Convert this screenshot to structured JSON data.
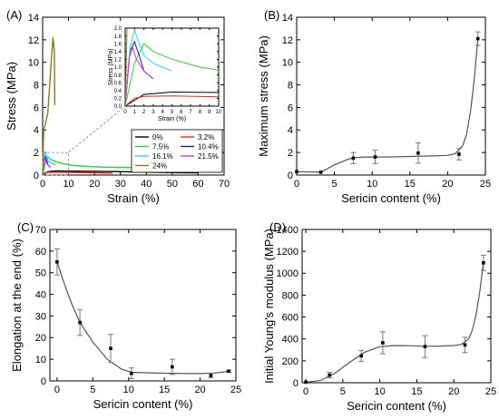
{
  "chart_data": [
    {
      "panel": "(A)",
      "type": "line",
      "xlabel": "Strain (%)",
      "ylabel": "Stress (MPa)",
      "xlim": [
        0,
        70
      ],
      "ylim": [
        0,
        14
      ],
      "xticks": [
        0,
        10,
        20,
        30,
        40,
        50,
        60,
        70
      ],
      "yticks": [
        0,
        2,
        4,
        6,
        8,
        10,
        12,
        14
      ],
      "legend_position": "bottom-right",
      "series": [
        {
          "name": "0%",
          "color": "#000000",
          "x": [
            0,
            2,
            5,
            10,
            20,
            30,
            40,
            50,
            60
          ],
          "y": [
            0,
            0.3,
            0.36,
            0.35,
            0.33,
            0.3,
            0.26,
            0.22,
            0.2
          ]
        },
        {
          "name": "3.2%",
          "color": "#e8261f",
          "x": [
            0,
            1,
            2,
            5,
            10,
            15,
            20,
            25,
            27
          ],
          "y": [
            0,
            0.2,
            0.25,
            0.26,
            0.24,
            0.22,
            0.2,
            0.18,
            0.15
          ]
        },
        {
          "name": "7.5%",
          "color": "#2fd22f",
          "x": [
            0,
            1,
            2,
            3,
            5,
            8,
            12,
            18,
            25,
            30,
            35
          ],
          "y": [
            0,
            1.1,
            1.6,
            1.4,
            1.2,
            1.0,
            0.85,
            0.75,
            0.7,
            0.68,
            0.65
          ]
        },
        {
          "name": "10.4%",
          "color": "#1b1bb0",
          "x": [
            0,
            0.5,
            1,
            1.5,
            2,
            3
          ],
          "y": [
            0,
            1.4,
            1.65,
            1.3,
            0.9,
            0.7
          ]
        },
        {
          "name": "16.1%",
          "color": "#19e0ee",
          "x": [
            0,
            0.5,
            1,
            1.5,
            2,
            3,
            4,
            5
          ],
          "y": [
            0,
            1.5,
            1.95,
            1.6,
            1.3,
            1.1,
            1.0,
            0.9
          ]
        },
        {
          "name": "21.5%",
          "color": "#e02ee0",
          "x": [
            0,
            0.4,
            0.8,
            1.2,
            2,
            3
          ],
          "y": [
            0,
            1.2,
            1.5,
            1.2,
            0.9,
            0.7
          ]
        },
        {
          "name": "24%",
          "color": "#8a7e18",
          "x": [
            0,
            0.4,
            1,
            2,
            3,
            4,
            4.5,
            4.7
          ],
          "y": [
            0,
            4.0,
            4.5,
            5.5,
            9.0,
            12.2,
            11.0,
            6.2
          ]
        }
      ],
      "inset": {
        "xlabel": "Strain (%)",
        "ylabel": "Stress (MPa)",
        "xlim": [
          0,
          10
        ],
        "ylim": [
          0,
          2.0
        ],
        "xticks": [
          0,
          1,
          2,
          3,
          4,
          5,
          6,
          7,
          8,
          9,
          10
        ],
        "yticks": [
          "0.0",
          "0.2",
          "0.4",
          "0.6",
          "0.8",
          "1.0",
          "1.2",
          "1.4",
          "1.6",
          "1.8",
          "2.0"
        ]
      }
    },
    {
      "panel": "(B)",
      "type": "scatter",
      "xlabel": "Sericin content (%)",
      "ylabel": "Maximum stress (MPa)",
      "xlim": [
        0,
        25
      ],
      "ylim": [
        0,
        14
      ],
      "xticks": [
        0,
        5,
        10,
        15,
        20,
        25
      ],
      "yticks": [
        0,
        2,
        4,
        6,
        8,
        10,
        12,
        14
      ],
      "points": [
        {
          "x": 0,
          "y": 0.3,
          "err": 0
        },
        {
          "x": 3.2,
          "y": 0.25,
          "err": 0
        },
        {
          "x": 7.5,
          "y": 1.5,
          "err": 0.5
        },
        {
          "x": 10.4,
          "y": 1.6,
          "err": 0.6
        },
        {
          "x": 16.1,
          "y": 1.95,
          "err": 0.9
        },
        {
          "x": 21.5,
          "y": 1.85,
          "err": 0.5
        },
        {
          "x": 24,
          "y": 12.1,
          "err": 0.6
        }
      ],
      "fit": {
        "x": [
          0,
          3.2,
          5,
          7,
          8,
          9,
          10,
          12,
          15,
          18,
          20,
          21,
          22,
          22.5,
          23,
          23.5,
          24
        ],
        "y": [
          0.3,
          0.25,
          0.9,
          1.45,
          1.55,
          1.6,
          1.6,
          1.6,
          1.65,
          1.7,
          1.75,
          1.9,
          2.6,
          3.6,
          5.5,
          8.3,
          12.1
        ]
      }
    },
    {
      "panel": "(C)",
      "type": "scatter",
      "xlabel": "Sericin content (%)",
      "ylabel": "Elongation at the end (%)",
      "xlim": [
        -1,
        25
      ],
      "ylim": [
        0,
        70
      ],
      "xticks": [
        0,
        5,
        10,
        15,
        20,
        25
      ],
      "yticks": [
        0,
        10,
        20,
        30,
        40,
        50,
        60,
        70
      ],
      "points": [
        {
          "x": 0,
          "y": 55,
          "err": 6
        },
        {
          "x": 3.2,
          "y": 27,
          "err": 6
        },
        {
          "x": 7.5,
          "y": 15,
          "err": 6.5
        },
        {
          "x": 10.4,
          "y": 3.5,
          "err": 2.5
        },
        {
          "x": 16.1,
          "y": 6.5,
          "err": 3.5
        },
        {
          "x": 21.5,
          "y": 2.5,
          "err": 1
        },
        {
          "x": 24,
          "y": 4.5,
          "err": 0.5
        }
      ],
      "fit": {
        "x": [
          0,
          1,
          2,
          3.2,
          5,
          7,
          9,
          10.4,
          12,
          14,
          16,
          18,
          20,
          22,
          24
        ],
        "y": [
          55,
          45,
          36,
          27,
          18,
          10,
          5.5,
          4.0,
          3.8,
          3.6,
          3.5,
          3.4,
          3.4,
          3.6,
          4.5
        ]
      }
    },
    {
      "panel": "(D)",
      "type": "scatter",
      "xlabel": "Sericin content (%)",
      "ylabel": "Initial Young's modulus (MPa)",
      "xlim": [
        -0.5,
        25
      ],
      "ylim": [
        0,
        1400
      ],
      "xticks": [
        0,
        5,
        10,
        15,
        20,
        25
      ],
      "yticks": [
        0,
        200,
        400,
        600,
        800,
        1000,
        1200,
        1400
      ],
      "points": [
        {
          "x": 0,
          "y": 5,
          "err": 0
        },
        {
          "x": 3.2,
          "y": 70,
          "err": 25
        },
        {
          "x": 7.5,
          "y": 245,
          "err": 50
        },
        {
          "x": 10.4,
          "y": 365,
          "err": 100
        },
        {
          "x": 16.1,
          "y": 330,
          "err": 100
        },
        {
          "x": 21.5,
          "y": 345,
          "err": 70
        },
        {
          "x": 24,
          "y": 1095,
          "err": 70
        }
      ],
      "fit": {
        "x": [
          0,
          2,
          4,
          6,
          8,
          10,
          12,
          14,
          16,
          18,
          20,
          21,
          22,
          22.5,
          23,
          23.5,
          24
        ],
        "y": [
          5,
          20,
          90,
          190,
          280,
          330,
          340,
          338,
          333,
          335,
          340,
          350,
          400,
          480,
          620,
          830,
          1095
        ]
      }
    }
  ]
}
